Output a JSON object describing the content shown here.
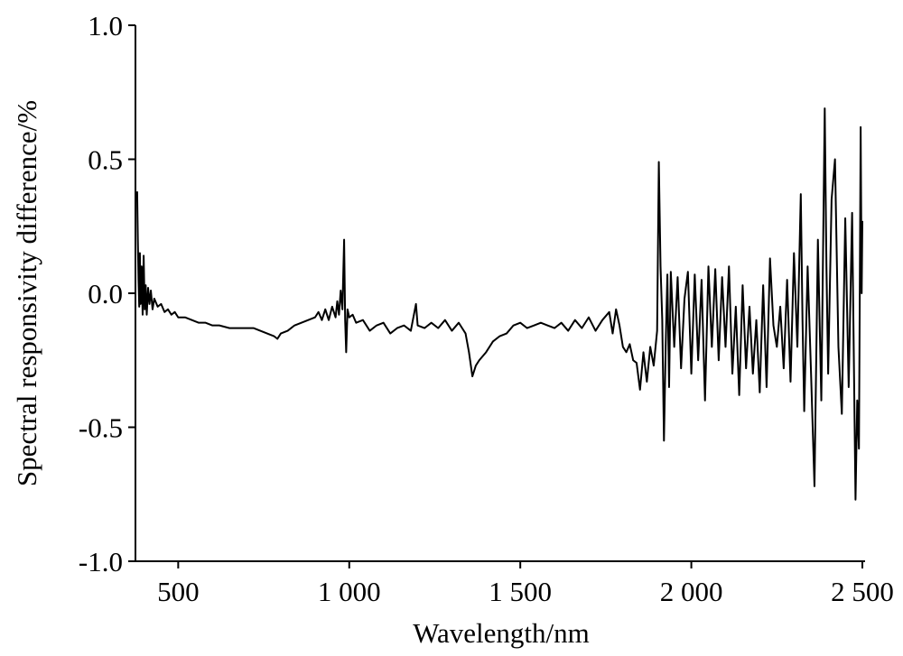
{
  "chart_data": {
    "type": "line",
    "x_label": "Wavelength/nm",
    "y_label": "Spectral responsivity difference/%",
    "xlim": [
      375,
      2500
    ],
    "xticks": [
      500,
      {
        "value": 1000,
        "label": "1 000"
      },
      {
        "value": 1500,
        "label": "1 500"
      },
      {
        "value": 2000,
        "label": "2 000"
      },
      {
        "value": 2500,
        "label": "2 500"
      }
    ],
    "ylim": [
      -1.0,
      1.0
    ],
    "yticks": [
      {
        "value": -1.0,
        "label": "-1.0"
      },
      {
        "value": -0.5,
        "label": "-0.5"
      },
      {
        "value": 0.0,
        "label": "0.0"
      },
      {
        "value": 0.5,
        "label": "0.5"
      },
      {
        "value": 1.0,
        "label": "1.0"
      }
    ],
    "grid": false,
    "series": [
      {
        "color": "#000000",
        "x": [
          380,
          382,
          384,
          386,
          388,
          390,
          393,
          396,
          399,
          402,
          405,
          408,
          412,
          416,
          420,
          425,
          430,
          440,
          450,
          460,
          470,
          480,
          490,
          500,
          520,
          540,
          560,
          580,
          600,
          620,
          650,
          680,
          700,
          720,
          740,
          760,
          780,
          790,
          800,
          820,
          840,
          860,
          880,
          900,
          910,
          920,
          930,
          940,
          950,
          960,
          965,
          970,
          975,
          980,
          985,
          988,
          991,
          995,
          1000,
          1010,
          1020,
          1040,
          1060,
          1080,
          1100,
          1120,
          1140,
          1160,
          1180,
          1195,
          1200,
          1220,
          1240,
          1260,
          1280,
          1300,
          1320,
          1330,
          1340,
          1350,
          1360,
          1370,
          1380,
          1400,
          1420,
          1440,
          1460,
          1480,
          1500,
          1520,
          1540,
          1560,
          1580,
          1600,
          1620,
          1640,
          1660,
          1680,
          1700,
          1720,
          1740,
          1760,
          1770,
          1780,
          1790,
          1800,
          1810,
          1820,
          1830,
          1840,
          1850,
          1860,
          1870,
          1880,
          1890,
          1900,
          1905,
          1910,
          1915,
          1920,
          1925,
          1930,
          1935,
          1940,
          1950,
          1960,
          1970,
          1980,
          1990,
          2000,
          2010,
          2020,
          2030,
          2040,
          2050,
          2060,
          2070,
          2080,
          2090,
          2100,
          2110,
          2120,
          2130,
          2140,
          2150,
          2160,
          2170,
          2180,
          2190,
          2200,
          2210,
          2220,
          2230,
          2240,
          2250,
          2260,
          2270,
          2280,
          2290,
          2300,
          2310,
          2320,
          2325,
          2330,
          2340,
          2350,
          2360,
          2370,
          2380,
          2390,
          2395,
          2400,
          2410,
          2420,
          2430,
          2440,
          2450,
          2460,
          2470,
          2480,
          2485,
          2490,
          2495,
          2498,
          2500
        ],
        "values": [
          0.38,
          0.2,
          0.05,
          -0.05,
          0.15,
          -0.04,
          0.1,
          -0.08,
          0.14,
          -0.06,
          0.03,
          -0.08,
          0.02,
          -0.04,
          0.01,
          -0.06,
          -0.02,
          -0.05,
          -0.04,
          -0.07,
          -0.06,
          -0.08,
          -0.07,
          -0.09,
          -0.09,
          -0.1,
          -0.11,
          -0.11,
          -0.12,
          -0.12,
          -0.13,
          -0.13,
          -0.13,
          -0.13,
          -0.14,
          -0.15,
          -0.16,
          -0.17,
          -0.15,
          -0.14,
          -0.12,
          -0.11,
          -0.1,
          -0.09,
          -0.07,
          -0.1,
          -0.06,
          -0.1,
          -0.05,
          -0.09,
          -0.03,
          -0.08,
          0.01,
          -0.06,
          0.2,
          -0.1,
          -0.22,
          -0.06,
          -0.09,
          -0.08,
          -0.11,
          -0.1,
          -0.14,
          -0.12,
          -0.11,
          -0.15,
          -0.13,
          -0.12,
          -0.14,
          -0.04,
          -0.12,
          -0.13,
          -0.11,
          -0.13,
          -0.1,
          -0.14,
          -0.11,
          -0.13,
          -0.15,
          -0.22,
          -0.31,
          -0.27,
          -0.25,
          -0.22,
          -0.18,
          -0.16,
          -0.15,
          -0.12,
          -0.11,
          -0.13,
          -0.12,
          -0.11,
          -0.12,
          -0.13,
          -0.11,
          -0.14,
          -0.1,
          -0.13,
          -0.09,
          -0.14,
          -0.1,
          -0.07,
          -0.15,
          -0.06,
          -0.12,
          -0.2,
          -0.22,
          -0.19,
          -0.25,
          -0.26,
          -0.36,
          -0.22,
          -0.33,
          -0.2,
          -0.27,
          -0.14,
          0.49,
          0.1,
          -0.1,
          -0.55,
          -0.2,
          0.07,
          -0.35,
          0.08,
          -0.2,
          0.06,
          -0.28,
          -0.02,
          0.08,
          -0.3,
          0.07,
          -0.25,
          0.05,
          -0.4,
          0.1,
          -0.2,
          0.09,
          -0.25,
          0.06,
          -0.2,
          0.1,
          -0.3,
          -0.05,
          -0.38,
          0.03,
          -0.28,
          -0.05,
          -0.3,
          -0.1,
          -0.37,
          0.03,
          -0.35,
          0.13,
          -0.12,
          -0.2,
          -0.05,
          -0.28,
          0.05,
          -0.33,
          0.15,
          -0.2,
          0.37,
          -0.1,
          -0.44,
          0.1,
          -0.3,
          -0.72,
          0.2,
          -0.4,
          0.69,
          0.1,
          -0.3,
          0.35,
          0.5,
          -0.2,
          -0.45,
          0.28,
          -0.35,
          0.3,
          -0.77,
          -0.4,
          -0.58,
          0.62,
          0.0,
          0.27
        ]
      }
    ]
  }
}
